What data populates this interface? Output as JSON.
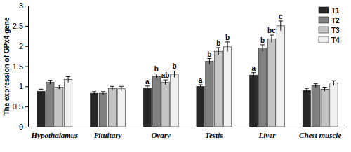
{
  "chart_data": {
    "type": "bar",
    "y_label": "The expression of GPx4 gene",
    "categories": [
      "Hypothalamus",
      "Pituitary",
      "Ovary",
      "Testis",
      "Liver",
      "Chest muscle"
    ],
    "series": [
      {
        "name": "T1",
        "color": "#262626",
        "values": [
          0.88,
          0.83,
          0.95,
          1.0,
          1.28,
          0.9
        ],
        "errors": [
          0.05,
          0.04,
          0.06,
          0.04,
          0.06,
          0.05
        ],
        "letters": [
          null,
          null,
          "a",
          "a",
          "a",
          null
        ]
      },
      {
        "name": "T2",
        "color": "#808080",
        "values": [
          1.1,
          0.83,
          1.25,
          1.62,
          1.95,
          1.02
        ],
        "errors": [
          0.05,
          0.04,
          0.06,
          0.07,
          0.08,
          0.05
        ],
        "letters": [
          null,
          null,
          "b",
          "b",
          "b",
          null
        ]
      },
      {
        "name": "T3",
        "color": "#c4c4c4",
        "values": [
          0.98,
          0.95,
          1.1,
          1.87,
          2.18,
          0.93
        ],
        "errors": [
          0.05,
          0.05,
          0.06,
          0.09,
          0.09,
          0.05
        ],
        "letters": [
          null,
          null,
          "ab",
          "b",
          "bc",
          null
        ]
      },
      {
        "name": "T4",
        "color": "#f0f0f0",
        "values": [
          1.17,
          0.94,
          1.3,
          1.98,
          2.5,
          1.08
        ],
        "errors": [
          0.07,
          0.06,
          0.08,
          0.12,
          0.12,
          0.06
        ],
        "letters": [
          null,
          null,
          "b",
          "b",
          "c",
          null
        ]
      }
    ],
    "ylim": [
      0,
      3
    ],
    "yticks": [
      0,
      0.5,
      1,
      1.5,
      2,
      2.5,
      3
    ],
    "grid": false,
    "legend": "upper right"
  }
}
